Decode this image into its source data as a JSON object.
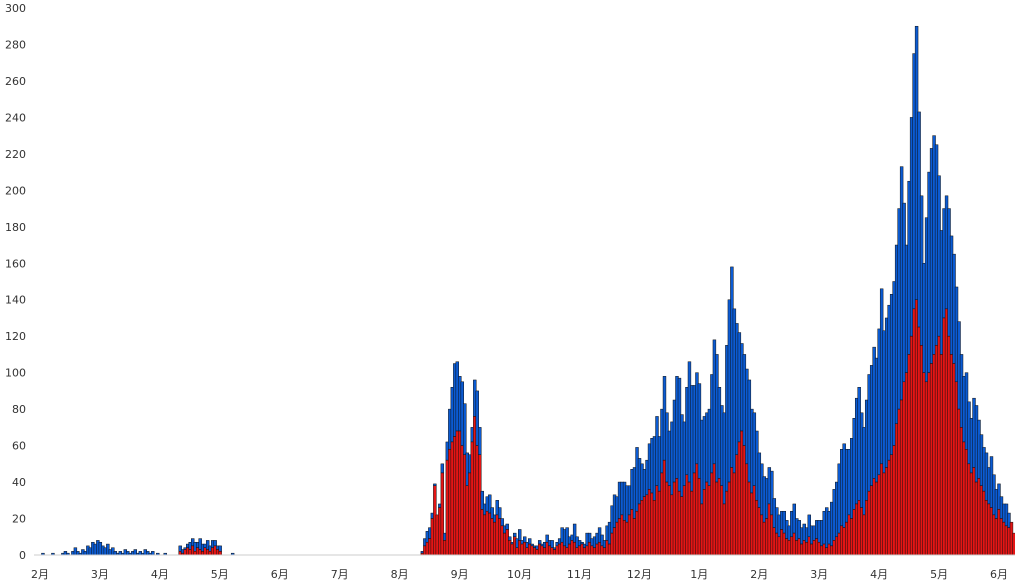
{
  "chart_data": {
    "type": "bar",
    "stacked": true,
    "ylim": [
      0,
      300
    ],
    "yticks": [
      0,
      20,
      40,
      60,
      80,
      100,
      120,
      140,
      160,
      180,
      200,
      220,
      240,
      260,
      280,
      300
    ],
    "xlabels": [
      "2月",
      "3月",
      "4月",
      "5月",
      "6月",
      "7月",
      "8月",
      "9月",
      "10月",
      "11月",
      "12月",
      "1月",
      "2月",
      "3月",
      "4月",
      "5月",
      "6月"
    ],
    "grid": false,
    "legend": "none",
    "colors": {
      "lower": "#e41515",
      "upper": "#0b5bd3",
      "edge": "#111111"
    },
    "series": [
      {
        "values": [
          0,
          0,
          0,
          0,
          0,
          0,
          0,
          0,
          0,
          0,
          0,
          0,
          0,
          0,
          0,
          0,
          0,
          0,
          0,
          0,
          0,
          0,
          0,
          0,
          0,
          0,
          0,
          0,
          0,
          0,
          0,
          0,
          0,
          0,
          0,
          0,
          0,
          0,
          0,
          0,
          0,
          0,
          0,
          0,
          0,
          0,
          0,
          0,
          0,
          0,
          0,
          0,
          0,
          0,
          0,
          0,
          0,
          0,
          2,
          1,
          3,
          4,
          3,
          5,
          2,
          4,
          3,
          2,
          4,
          3,
          2,
          4,
          5,
          3,
          2,
          0,
          0,
          0,
          0,
          0,
          0,
          0,
          0,
          0,
          0,
          0,
          0,
          0,
          0,
          0,
          0,
          0,
          0,
          0,
          0,
          0,
          0,
          0,
          0,
          0,
          0,
          0,
          0,
          0,
          0,
          0,
          0,
          0,
          0,
          0,
          0,
          0,
          0,
          0,
          0,
          0,
          0,
          0,
          0,
          0,
          0,
          0,
          0,
          0,
          0,
          0,
          0,
          0,
          0,
          0,
          0,
          0,
          0,
          0,
          0,
          0,
          0,
          0,
          0,
          0,
          0,
          0,
          0,
          0,
          0,
          0,
          0,
          0,
          0,
          0,
          0,
          0,
          0,
          0,
          0,
          1,
          5,
          7,
          9,
          20,
          38,
          22,
          26,
          45,
          8,
          52,
          58,
          62,
          65,
          68,
          68,
          60,
          55,
          38,
          45,
          62,
          76,
          60,
          55,
          25,
          22,
          24,
          23,
          20,
          18,
          22,
          20,
          16,
          12,
          14,
          8,
          6,
          10,
          4,
          8,
          6,
          7,
          4,
          6,
          5,
          4,
          3,
          6,
          5,
          4,
          7,
          5,
          4,
          3,
          5,
          6,
          7,
          5,
          4,
          6,
          8,
          7,
          4,
          5,
          6,
          4,
          5,
          7,
          5,
          4,
          6,
          7,
          5,
          4,
          8,
          6,
          12,
          15,
          18,
          20,
          22,
          19,
          18,
          22,
          25,
          20,
          24,
          28,
          30,
          32,
          33,
          36,
          34,
          30,
          38,
          35,
          45,
          52,
          40,
          38,
          33,
          40,
          42,
          35,
          32,
          38,
          44,
          40,
          35,
          45,
          50,
          42,
          28,
          36,
          40,
          38,
          45,
          50,
          40,
          42,
          38,
          28,
          35,
          40,
          48,
          45,
          55,
          62,
          68,
          60,
          50,
          40,
          34,
          38,
          30,
          26,
          22,
          18,
          20,
          28,
          22,
          15,
          12,
          10,
          14,
          12,
          9,
          8,
          10,
          12,
          8,
          9,
          6,
          8,
          7,
          10,
          6,
          8,
          9,
          7,
          5,
          6,
          4,
          6,
          5,
          8,
          10,
          12,
          16,
          15,
          18,
          22,
          20,
          25,
          28,
          30,
          26,
          22,
          30,
          35,
          38,
          42,
          40,
          44,
          50,
          45,
          48,
          52,
          55,
          60,
          72,
          80,
          85,
          95,
          100,
          110,
          120,
          135,
          140,
          125,
          115,
          100,
          95,
          100,
          105,
          110,
          115,
          120,
          110,
          130,
          135,
          120,
          110,
          105,
          95,
          80,
          70,
          62,
          58,
          50,
          45,
          48,
          40,
          42,
          38,
          35,
          30,
          28,
          26,
          22,
          20,
          25,
          20,
          18,
          16,
          15,
          18,
          12
        ]
      },
      {
        "values": [
          0,
          0,
          0,
          1,
          0,
          0,
          0,
          1,
          0,
          0,
          0,
          1,
          2,
          1,
          0,
          2,
          4,
          2,
          1,
          3,
          2,
          5,
          4,
          7,
          6,
          8,
          7,
          5,
          4,
          6,
          3,
          4,
          2,
          1,
          2,
          1,
          3,
          2,
          1,
          2,
          3,
          1,
          2,
          1,
          3,
          2,
          1,
          2,
          0,
          1,
          0,
          0,
          1,
          0,
          0,
          0,
          0,
          0,
          3,
          2,
          1,
          2,
          4,
          4,
          5,
          3,
          6,
          4,
          2,
          5,
          3,
          4,
          3,
          2,
          3,
          0,
          0,
          0,
          0,
          1,
          0,
          0,
          0,
          0,
          0,
          0,
          0,
          0,
          0,
          0,
          0,
          0,
          0,
          0,
          0,
          0,
          0,
          0,
          0,
          0,
          0,
          0,
          0,
          0,
          0,
          0,
          0,
          0,
          0,
          0,
          0,
          0,
          0,
          0,
          0,
          0,
          0,
          0,
          0,
          0,
          0,
          0,
          0,
          0,
          0,
          0,
          0,
          0,
          0,
          0,
          0,
          0,
          0,
          0,
          0,
          0,
          0,
          0,
          0,
          0,
          0,
          0,
          0,
          0,
          0,
          0,
          0,
          0,
          0,
          0,
          0,
          0,
          0,
          0,
          0,
          1,
          4,
          6,
          6,
          3,
          1,
          0,
          2,
          5,
          4,
          10,
          22,
          30,
          40,
          38,
          30,
          35,
          28,
          18,
          10,
          8,
          20,
          30,
          15,
          10,
          6,
          8,
          10,
          6,
          4,
          8,
          6,
          4,
          4,
          3,
          2,
          1,
          2,
          5,
          6,
          2,
          3,
          3,
          3,
          1,
          1,
          2,
          2,
          1,
          3,
          4,
          3,
          4,
          1,
          2,
          3,
          8,
          9,
          11,
          4,
          3,
          10,
          6,
          3,
          1,
          2,
          7,
          5,
          4,
          6,
          6,
          8,
          6,
          4,
          8,
          12,
          15,
          18,
          14,
          20,
          18,
          21,
          20,
          16,
          22,
          28,
          35,
          25,
          20,
          15,
          19,
          25,
          30,
          35,
          38,
          30,
          35,
          46,
          38,
          30,
          40,
          45,
          56,
          62,
          45,
          35,
          48,
          66,
          58,
          48,
          50,
          52,
          46,
          40,
          38,
          42,
          54,
          68,
          70,
          50,
          44,
          50,
          80,
          100,
          110,
          90,
          72,
          60,
          48,
          50,
          52,
          56,
          46,
          40,
          38,
          30,
          28,
          25,
          22,
          20,
          24,
          16,
          14,
          12,
          10,
          12,
          10,
          8,
          14,
          16,
          12,
          10,
          9,
          9,
          8,
          12,
          10,
          8,
          10,
          12,
          14,
          18,
          22,
          18,
          24,
          28,
          30,
          38,
          42,
          46,
          40,
          36,
          44,
          50,
          58,
          62,
          52,
          48,
          55,
          64,
          66,
          72,
          68,
          80,
          96,
          78,
          82,
          85,
          88,
          90,
          98,
          110,
          128,
          98,
          70,
          95,
          120,
          140,
          150,
          118,
          82,
          60,
          90,
          110,
          118,
          120,
          110,
          88,
          68,
          60,
          62,
          70,
          65,
          60,
          52,
          48,
          40,
          36,
          42,
          34,
          30,
          38,
          42,
          32,
          28,
          24,
          26,
          20,
          28,
          22,
          16,
          14,
          12,
          10,
          12,
          8
        ]
      }
    ]
  }
}
